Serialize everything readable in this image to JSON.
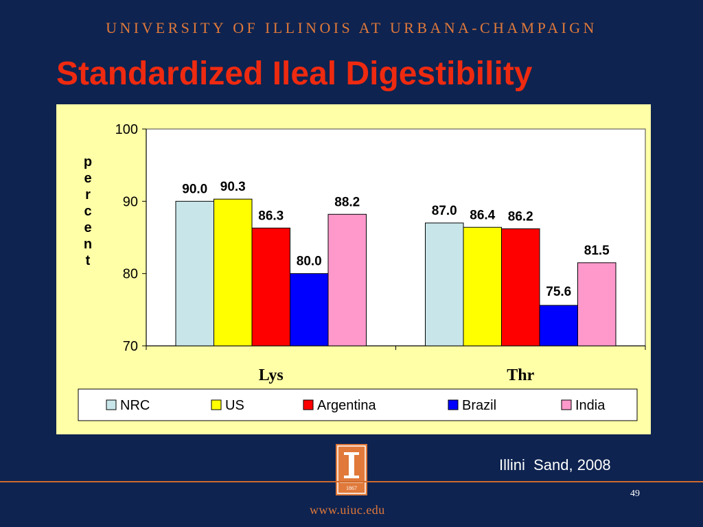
{
  "header": {
    "university": "UNIVERSITY OF ILLINOIS AT URBANA-CHAMPAIGN"
  },
  "slide": {
    "title": "Standardized Ileal Digestibility",
    "credit": "Illini  Sand, 2008",
    "page_number": "49"
  },
  "logo": {
    "year": "1867"
  },
  "footer": {
    "url": "www.uiuc.edu"
  },
  "colors": {
    "NRC": "#c8e6ea",
    "US": "#ffff00",
    "Argentina": "#ff0000",
    "Brazil": "#0000ff",
    "India": "#ff99cc",
    "title": "#ee2a10",
    "accent": "#e0793a",
    "background": "#0e2350",
    "panel": "#ffffa8"
  },
  "chart_data": {
    "type": "bar",
    "title": "",
    "xlabel": "",
    "ylabel": "percent",
    "ylim": [
      70,
      100
    ],
    "yticks": [
      "100",
      "90",
      "80",
      "70"
    ],
    "categories": [
      "Lys",
      "Thr"
    ],
    "series": [
      {
        "name": "NRC",
        "values": [
          90.0,
          87.0
        ],
        "labels": [
          "90.0",
          "87.0"
        ]
      },
      {
        "name": "US",
        "values": [
          90.3,
          86.4
        ],
        "labels": [
          "90.3",
          "86.4"
        ]
      },
      {
        "name": "Argentina",
        "values": [
          86.3,
          86.2
        ],
        "labels": [
          "86.3",
          "86.2"
        ]
      },
      {
        "name": "Brazil",
        "values": [
          80.0,
          75.6
        ],
        "labels": [
          "80.0",
          "75.6"
        ]
      },
      {
        "name": "India",
        "values": [
          88.2,
          81.5
        ],
        "labels": [
          "88.2",
          "81.5"
        ]
      }
    ],
    "legend": "bottom",
    "grid": false
  }
}
